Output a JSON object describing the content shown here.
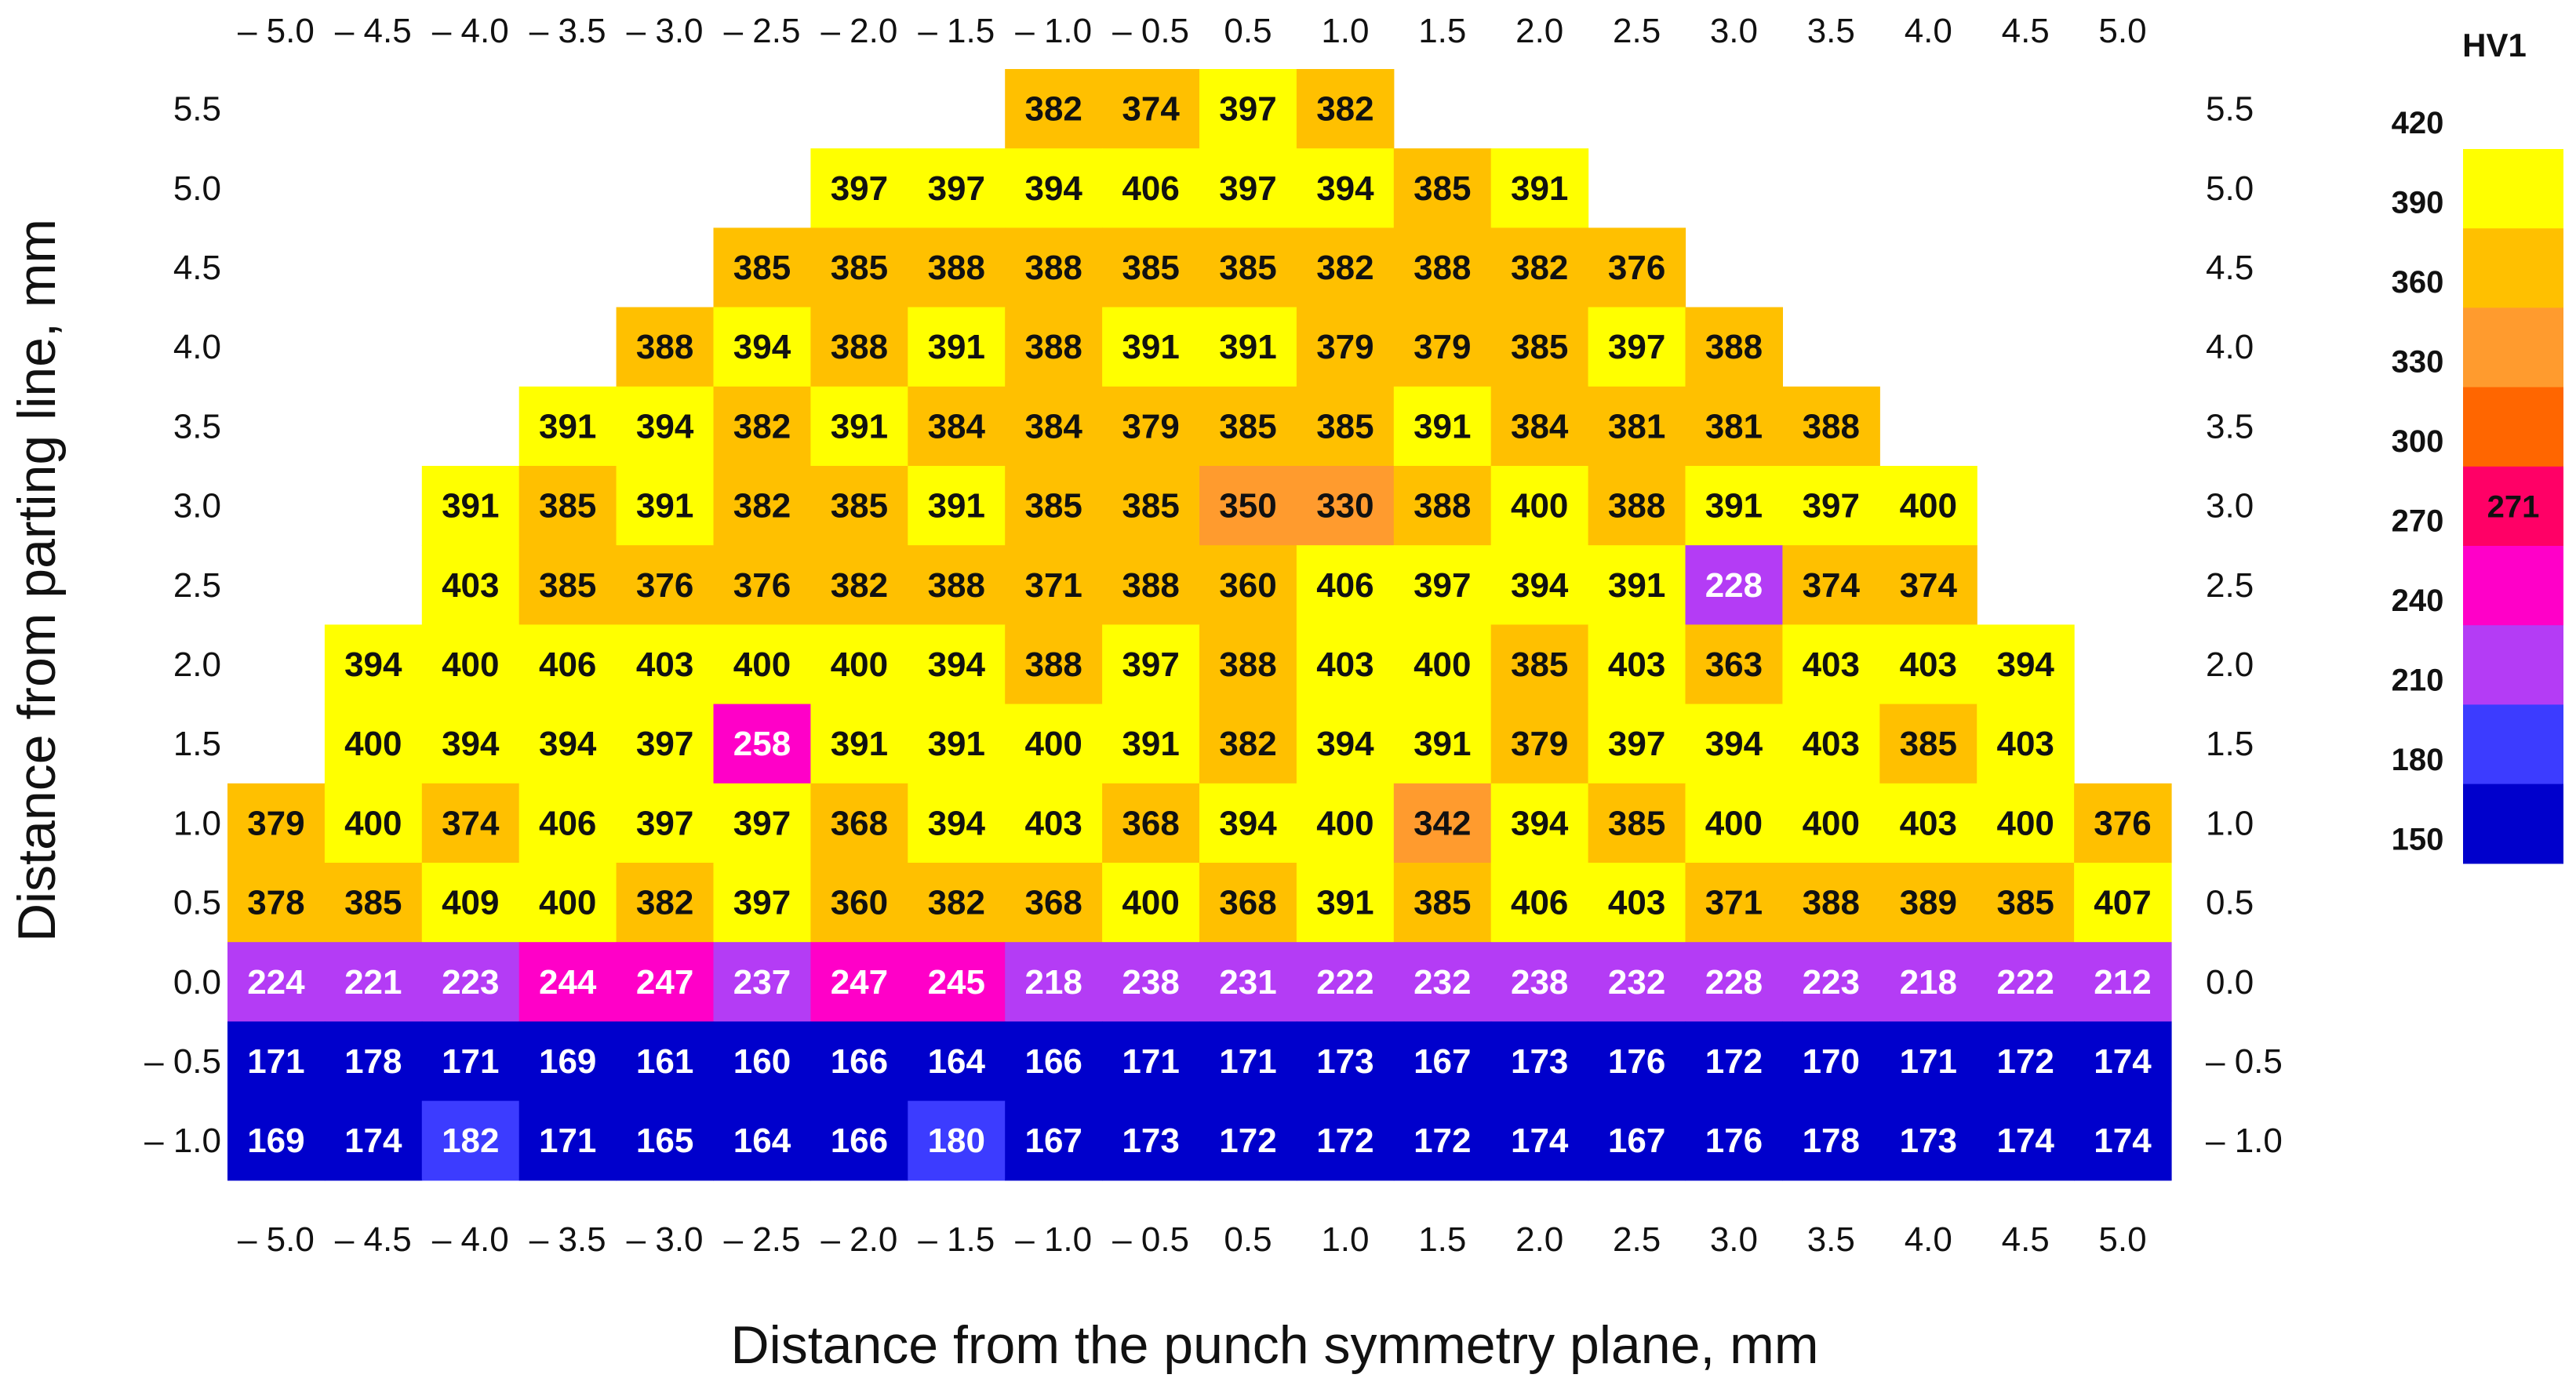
{
  "chart_data": {
    "type": "heatmap",
    "title": "",
    "xlabel": "Distance from the punch symmetry plane, mm",
    "ylabel": "Distance from parting line, mm",
    "x_labels": [
      "– 5.0",
      "– 4.5",
      "– 4.0",
      "– 3.5",
      "– 3.0",
      "– 2.5",
      "– 2.0",
      "– 1.5",
      "– 1.0",
      "– 0.5",
      "0.5",
      "1.0",
      "1.5",
      "2.0",
      "2.5",
      "3.0",
      "3.5",
      "4.0",
      "4.5",
      "5.0"
    ],
    "y_labels": [
      "5.5",
      "5.0",
      "4.5",
      "4.0",
      "3.5",
      "3.0",
      "2.5",
      "2.0",
      "1.5",
      "1.0",
      "0.5",
      "0.0",
      "– 0.5",
      "– 1.0"
    ],
    "values": [
      [
        null,
        null,
        null,
        null,
        null,
        null,
        null,
        null,
        382,
        374,
        397,
        382,
        null,
        null,
        null,
        null,
        null,
        null,
        null,
        null
      ],
      [
        null,
        null,
        null,
        null,
        null,
        null,
        397,
        397,
        394,
        406,
        397,
        394,
        385,
        391,
        null,
        null,
        null,
        null,
        null,
        null
      ],
      [
        null,
        null,
        null,
        null,
        null,
        385,
        385,
        388,
        388,
        385,
        385,
        382,
        388,
        382,
        376,
        null,
        null,
        null,
        null,
        null
      ],
      [
        null,
        null,
        null,
        null,
        388,
        394,
        388,
        391,
        388,
        391,
        391,
        379,
        379,
        385,
        397,
        388,
        null,
        null,
        null,
        null
      ],
      [
        null,
        null,
        null,
        391,
        394,
        382,
        391,
        384,
        384,
        379,
        385,
        385,
        391,
        384,
        381,
        381,
        388,
        null,
        null,
        null
      ],
      [
        null,
        null,
        391,
        385,
        391,
        382,
        385,
        391,
        385,
        385,
        350,
        330,
        388,
        400,
        388,
        391,
        397,
        400,
        null,
        null
      ],
      [
        null,
        null,
        403,
        385,
        376,
        376,
        382,
        388,
        371,
        388,
        360,
        406,
        397,
        394,
        391,
        228,
        374,
        374,
        null,
        null
      ],
      [
        null,
        394,
        400,
        406,
        403,
        400,
        400,
        394,
        388,
        397,
        388,
        403,
        400,
        385,
        403,
        363,
        403,
        403,
        394,
        null
      ],
      [
        null,
        400,
        394,
        394,
        397,
        258,
        391,
        391,
        400,
        391,
        382,
        394,
        391,
        379,
        397,
        394,
        403,
        385,
        403,
        null
      ],
      [
        379,
        400,
        374,
        406,
        397,
        397,
        368,
        394,
        403,
        368,
        394,
        400,
        342,
        394,
        385,
        400,
        400,
        403,
        400,
        376
      ],
      [
        378,
        385,
        409,
        400,
        382,
        397,
        360,
        382,
        368,
        400,
        368,
        391,
        385,
        406,
        403,
        371,
        388,
        389,
        385,
        407
      ],
      [
        224,
        221,
        223,
        244,
        247,
        237,
        247,
        245,
        218,
        238,
        231,
        222,
        232,
        238,
        232,
        228,
        223,
        218,
        222,
        212
      ],
      [
        171,
        178,
        171,
        169,
        161,
        160,
        166,
        164,
        166,
        171,
        171,
        173,
        167,
        173,
        176,
        172,
        170,
        171,
        172,
        174
      ],
      [
        169,
        174,
        182,
        171,
        165,
        164,
        166,
        180,
        167,
        173,
        172,
        172,
        172,
        174,
        167,
        176,
        178,
        173,
        174,
        174
      ]
    ],
    "colorbar": {
      "title": "HV1",
      "ticks": [
        "420",
        "390",
        "360",
        "330",
        "300",
        "270",
        "240",
        "210",
        "180",
        "150"
      ],
      "bins": [
        {
          "min": 390,
          "max": 420,
          "color": "#ffff00"
        },
        {
          "min": 360,
          "max": 390,
          "color": "#ffc000"
        },
        {
          "min": 330,
          "max": 360,
          "color": "#ff9b2e"
        },
        {
          "min": 300,
          "max": 330,
          "color": "#ff6600"
        },
        {
          "min": 270,
          "max": 300,
          "color": "#ff0066"
        },
        {
          "min": 240,
          "max": 270,
          "color": "#ff00c8"
        },
        {
          "min": 210,
          "max": 240,
          "color": "#b43cf5"
        },
        {
          "min": 180,
          "max": 210,
          "color": "#3c3cff"
        },
        {
          "min": 150,
          "max": 180,
          "color": "#0000cc"
        }
      ],
      "marker_label": "271",
      "marker_color": "#ff0033"
    }
  }
}
